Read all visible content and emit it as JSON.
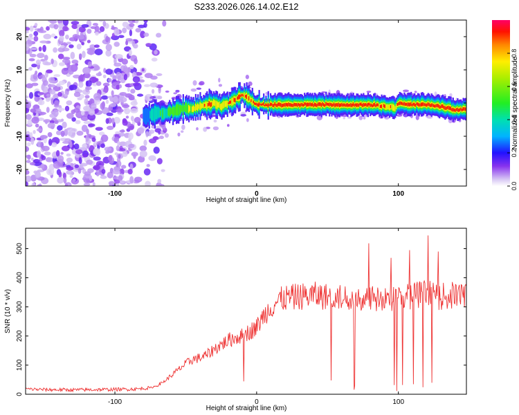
{
  "title": "S233.2026.026.14.02.E12",
  "chart_data": [
    {
      "type": "heatmap",
      "xlabel": "Height of straight line (km)",
      "ylabel": "Frequency (Hz)",
      "xlim": [
        -163,
        148
      ],
      "ylim": [
        -25,
        25
      ],
      "xticks": [
        -100,
        0,
        100
      ],
      "yticks": [
        -20,
        -10,
        0,
        10,
        20
      ],
      "colorbar": {
        "label": "Normalized spectral amplitude",
        "range": [
          0,
          1
        ],
        "ticks": [
          0,
          0.2,
          0.4,
          0.6,
          0.8
        ],
        "tick_labels": [
          "0.0",
          "0.2",
          "0.4",
          "0.6",
          "0.8"
        ]
      },
      "ridge": {
        "x": [
          -80,
          -75,
          -70,
          -65,
          -60,
          -55,
          -50,
          -45,
          -40,
          -35,
          -30,
          -25,
          -20,
          -15,
          -12,
          -10,
          -8,
          -5,
          0,
          10,
          20,
          40,
          60,
          80,
          90,
          95,
          98,
          100,
          110,
          120,
          130,
          140,
          148
        ],
        "y": [
          -4,
          -3.5,
          -3,
          -3.2,
          -2.5,
          -2,
          -1.5,
          -1.8,
          -1,
          -0.5,
          0,
          -1,
          0,
          1,
          2,
          2.5,
          2,
          1,
          -0.5,
          -0.5,
          -0.5,
          -0.5,
          -0.5,
          -0.5,
          -1,
          -1.2,
          -1.5,
          0,
          -0.5,
          -0.5,
          -1,
          -2,
          -2
        ],
        "amplitude": [
          0.25,
          0.35,
          0.45,
          0.5,
          0.55,
          0.6,
          0.65,
          0.72,
          0.8,
          0.9,
          0.85,
          0.8,
          0.85,
          0.9,
          0.92,
          0.95,
          0.9,
          0.88,
          0.95,
          0.97,
          0.98,
          0.98,
          0.98,
          0.95,
          0.9,
          0.85,
          0.8,
          0.9,
          0.95,
          0.95,
          0.95,
          0.95,
          0.95
        ]
      },
      "noise_region": {
        "x_from": -163,
        "x_to": -75,
        "level": 0.1
      }
    },
    {
      "type": "line",
      "xlabel": "Height of straight line (km)",
      "ylabel": "SNR (10 * v/v)",
      "xlim": [
        -163,
        148
      ],
      "ylim": [
        0,
        570
      ],
      "xticks": [
        -100,
        0,
        100
      ],
      "yticks": [
        0,
        100,
        200,
        300,
        400,
        500
      ],
      "series": [
        {
          "name": "SNR",
          "color": "#ee3333",
          "x": [
            -163,
            -150,
            -130,
            -110,
            -95,
            -85,
            -75,
            -70,
            -65,
            -60,
            -55,
            -50,
            -45,
            -40,
            -35,
            -30,
            -25,
            -20,
            -15,
            -10,
            -5,
            0,
            5,
            10,
            15,
            20,
            30,
            40,
            50,
            60,
            70,
            80,
            90,
            100,
            110,
            120,
            130,
            140,
            148
          ],
          "values": [
            18,
            16,
            15,
            16,
            17,
            18,
            22,
            30,
            45,
            65,
            85,
            105,
            120,
            125,
            135,
            155,
            170,
            185,
            195,
            200,
            215,
            230,
            270,
            300,
            320,
            330,
            335,
            340,
            335,
            330,
            335,
            330,
            320,
            335,
            340,
            345,
            335,
            340,
            345
          ]
        }
      ]
    }
  ]
}
